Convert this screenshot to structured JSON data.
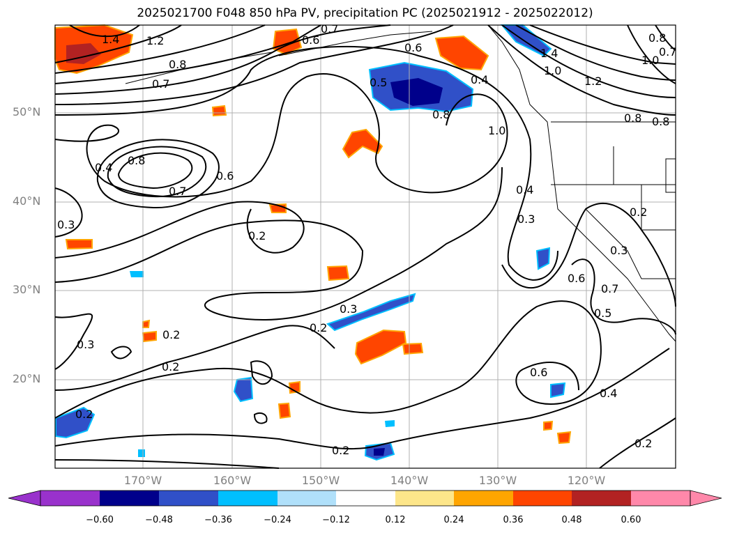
{
  "title": "2025021700 F048 850 hPa PV, precipitation PC (2025021912 - 2025022012)",
  "lat_labels": [
    "50°N",
    "40°N",
    "30°N",
    "20°N"
  ],
  "lon_labels": [
    "170°W",
    "160°W",
    "150°W",
    "140°W",
    "130°W",
    "120°W"
  ],
  "colorbar": {
    "ticks": [
      "−0.60",
      "−0.48",
      "−0.36",
      "−0.24",
      "−0.12",
      "0.12",
      "0.24",
      "0.36",
      "0.48",
      "0.60"
    ],
    "colors": [
      "#9932cc",
      "#00008b",
      "#3050c8",
      "#00bfff",
      "#b0e0fa",
      "#ffffff",
      "#fde68a",
      "#ffa500",
      "#ff4500",
      "#b22222",
      "#ff88aa"
    ]
  },
  "contour_labels": [
    {
      "text": "1.4"
    },
    {
      "text": "1.2"
    },
    {
      "text": "0.8"
    },
    {
      "text": "0.7"
    },
    {
      "text": "0.6"
    },
    {
      "text": "0.7"
    },
    {
      "text": "0.6"
    },
    {
      "text": "0.5"
    },
    {
      "text": "0.8"
    },
    {
      "text": "1.0"
    },
    {
      "text": "0.4"
    },
    {
      "text": "1.4"
    },
    {
      "text": "1.0"
    },
    {
      "text": "1.2"
    },
    {
      "text": "0.8"
    },
    {
      "text": "0.7"
    },
    {
      "text": "0.8"
    },
    {
      "text": "1.0"
    },
    {
      "text": "0.8"
    },
    {
      "text": "0.4"
    },
    {
      "text": "0.8"
    },
    {
      "text": "0.7"
    },
    {
      "text": "0.6"
    },
    {
      "text": "0.3"
    },
    {
      "text": "0.2"
    },
    {
      "text": "0.4"
    },
    {
      "text": "0.3"
    },
    {
      "text": "0.2"
    },
    {
      "text": "0.3"
    },
    {
      "text": "0.6"
    },
    {
      "text": "0.7"
    },
    {
      "text": "0.5"
    },
    {
      "text": "0.3"
    },
    {
      "text": "0.2"
    },
    {
      "text": "0.3"
    },
    {
      "text": "0.2"
    },
    {
      "text": "0.2"
    },
    {
      "text": "0.6"
    },
    {
      "text": "0.4"
    },
    {
      "text": "0.2"
    },
    {
      "text": "0.2"
    },
    {
      "text": "0.2"
    }
  ]
}
